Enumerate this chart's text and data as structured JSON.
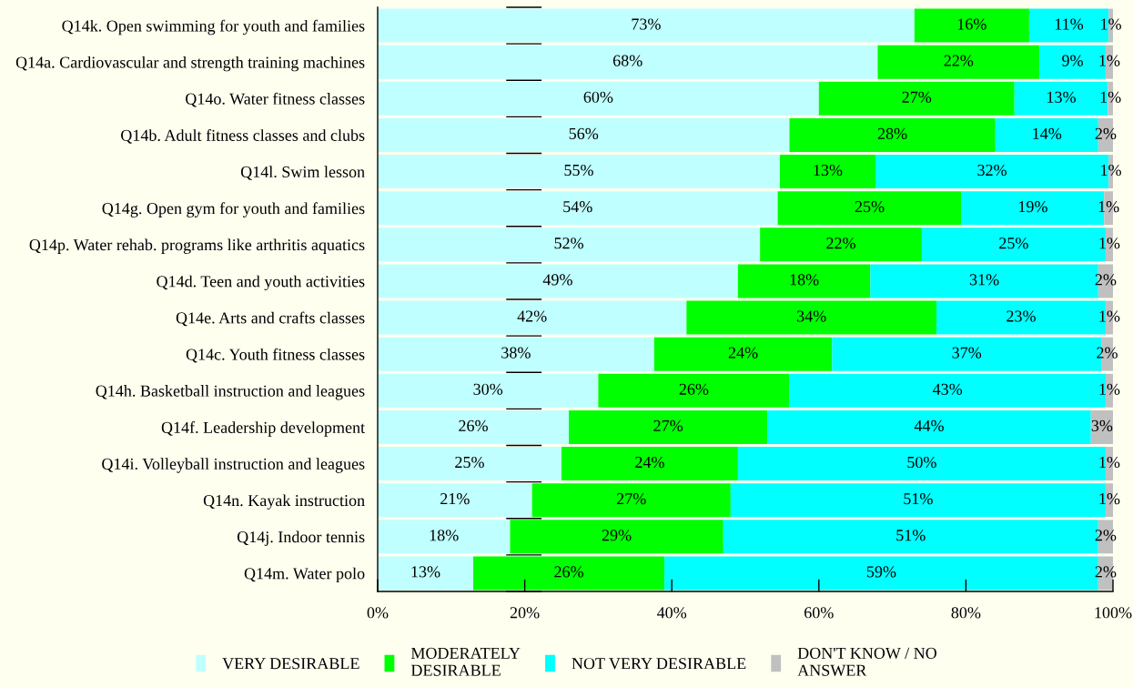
{
  "chart_data": {
    "type": "bar",
    "orientation": "horizontal",
    "stacked": true,
    "categories": [
      "Q14k. Open swimming for youth and families",
      "Q14a. Cardiovascular and strength training machines",
      "Q14o. Water fitness classes",
      "Q14b. Adult fitness classes and clubs",
      "Q14l. Swim lesson",
      "Q14g. Open gym for youth and families",
      "Q14p. Water rehab. programs like arthritis aquatics",
      "Q14d. Teen and youth activities",
      "Q14e. Arts and crafts classes",
      "Q14c. Youth fitness classes",
      "Q14h. Basketball instruction and leagues",
      "Q14f. Leadership development",
      "Q14i. Volleyball instruction and leagues",
      "Q14n. Kayak instruction",
      "Q14j. Indoor tennis",
      "Q14m. Water polo"
    ],
    "series": [
      {
        "name": "VERY DESIRABLE",
        "color": "#c0ffff",
        "values": [
          73.0,
          68,
          60,
          56,
          54.7,
          54.4,
          52,
          49,
          42,
          37.6,
          30,
          26,
          25,
          21,
          18,
          13
        ],
        "value_labels": [
          "73%",
          "68%",
          "60%",
          "56%",
          "55%",
          "54%",
          "52%",
          "49%",
          "42%",
          "38%",
          "30%",
          "26%",
          "25%",
          "21%",
          "18%",
          "13%"
        ]
      },
      {
        "name": "MODERATELY\nDESIRABLE",
        "color": "#00ff00",
        "values": [
          15.6,
          22,
          26.6,
          28,
          13.0,
          25.0,
          22,
          18,
          34,
          24.2,
          26,
          27,
          24,
          27,
          29,
          26
        ],
        "value_labels": [
          "16%",
          "22%",
          "27%",
          "28%",
          "13%",
          "25%",
          "22%",
          "18%",
          "34%",
          "24%",
          "26%",
          "27%",
          "24%",
          "27%",
          "29%",
          "26%"
        ]
      },
      {
        "name": "NOT VERY DESIRABLE",
        "color": "#00ffff",
        "values": [
          10.8,
          9,
          12.7,
          14,
          31.7,
          19.4,
          25,
          31,
          23,
          36.6,
          43,
          44,
          50,
          51,
          51,
          59
        ],
        "value_labels": [
          "11%",
          "9%",
          "13%",
          "14%",
          "32%",
          "19%",
          "25%",
          "31%",
          "23%",
          "37%",
          "43%",
          "44%",
          "50%",
          "51%",
          "51%",
          "59%"
        ]
      },
      {
        "name": "DON'T KNOW / NO\nANSWER",
        "color": "#c0c0c0",
        "values": [
          0.6,
          1,
          0.7,
          2,
          0.6,
          1.2,
          1,
          2,
          1,
          1.6,
          1,
          3,
          1,
          1,
          2,
          2
        ],
        "value_labels": [
          "1%",
          "1%",
          "1%",
          "2%",
          "1%",
          "1%",
          "1%",
          "2%",
          "1%",
          "2%",
          "1%",
          "3%",
          "1%",
          "1%",
          "2%",
          "2%"
        ]
      }
    ],
    "xlim": [
      0,
      100
    ],
    "xticks": [
      {
        "value": 0,
        "label": "0%"
      },
      {
        "value": 20,
        "label": "20%"
      },
      {
        "value": 40,
        "label": "40%"
      },
      {
        "value": 60,
        "label": "60%"
      },
      {
        "value": 80,
        "label": "80%"
      },
      {
        "value": 100,
        "label": "100%"
      }
    ],
    "legend": "bottom"
  }
}
